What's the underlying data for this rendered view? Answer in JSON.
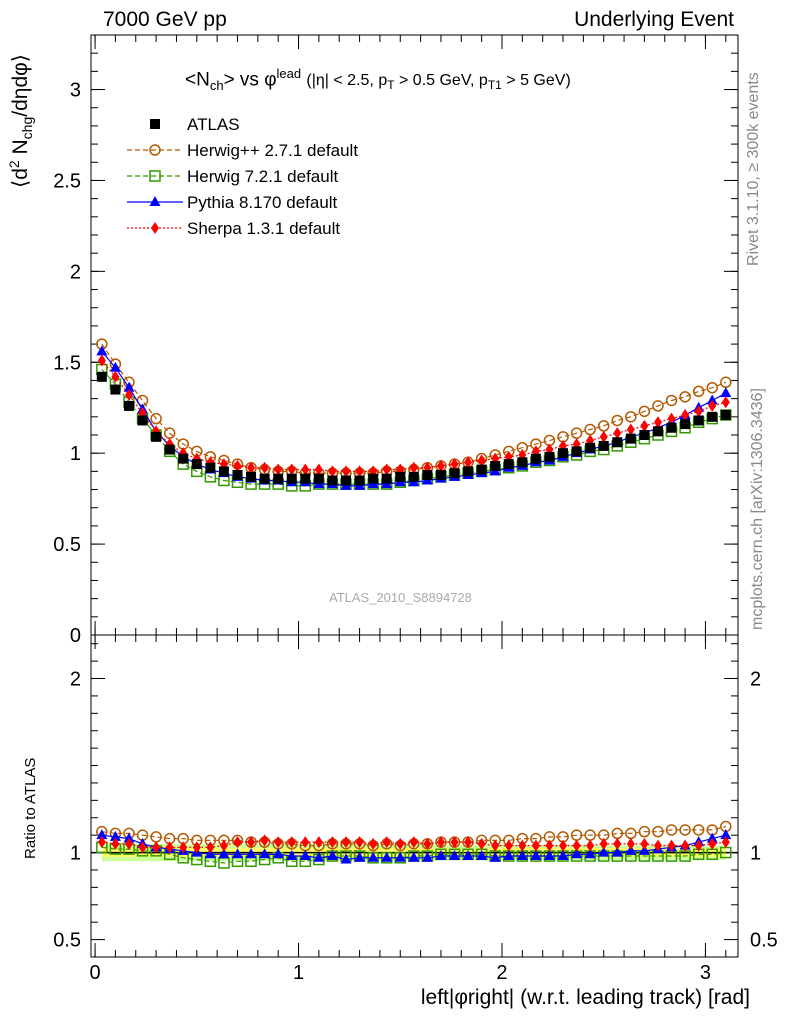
{
  "header": {
    "left_label": "7000 GeV pp",
    "right_label": "Underlying Event"
  },
  "side_labels": {
    "rivet": "Rivet 3.1.10, ≥ 300k events",
    "mcplots": "mcplots.cern.ch [arXiv:1306.3436]"
  },
  "watermark": "ATLAS_2010_S8894728",
  "chart_data": [
    {
      "type": "scatter",
      "panel": "main",
      "title_parts": {
        "n": "<N",
        "n_sub": "ch",
        "vs": "> vs φ",
        "vs_sup": "lead",
        "cuts_a": "(|η| < 2.5, p",
        "cuts_sub1": "T",
        "cuts_b": " > 0.5 GeV, p",
        "cuts_sub2": "T1",
        "cuts_c": " > 5 GeV)"
      },
      "ylabel_parts": {
        "a": "⟨d",
        "sup": "2",
        "b": " N",
        "sub": "chg",
        "c": "/dηdφ⟩"
      },
      "ylim": [
        0,
        3.3
      ],
      "yticks": [
        "0",
        "0.5",
        "1",
        "1.5",
        "2",
        "2.5",
        "3"
      ],
      "xlim": [
        -0.02,
        3.16
      ],
      "x": [
        0.0333,
        0.1,
        0.1667,
        0.2333,
        0.3,
        0.3667,
        0.4333,
        0.5,
        0.5667,
        0.6333,
        0.7,
        0.7667,
        0.8333,
        0.9,
        0.9667,
        1.0333,
        1.1,
        1.1667,
        1.2333,
        1.3,
        1.3667,
        1.4333,
        1.5,
        1.5667,
        1.6333,
        1.7,
        1.7667,
        1.8333,
        1.9,
        1.9667,
        2.0333,
        2.1,
        2.1667,
        2.2333,
        2.3,
        2.3667,
        2.4333,
        2.5,
        2.5667,
        2.6333,
        2.7,
        2.7667,
        2.8333,
        2.9,
        2.9667,
        3.0333,
        3.1
      ],
      "legend": [
        "ATLAS",
        "Herwig++ 2.7.1 default",
        "Herwig 7.2.1 default",
        "Pythia 8.170 default",
        "Sherpa 1.3.1 default"
      ],
      "series": [
        {
          "name": "ATLAS",
          "color": "#000000",
          "marker": "square-filled",
          "values": [
            1.42,
            1.35,
            1.26,
            1.18,
            1.09,
            1.02,
            0.97,
            0.94,
            0.92,
            0.9,
            0.88,
            0.87,
            0.86,
            0.86,
            0.86,
            0.86,
            0.86,
            0.85,
            0.85,
            0.85,
            0.86,
            0.86,
            0.87,
            0.87,
            0.88,
            0.88,
            0.89,
            0.9,
            0.91,
            0.93,
            0.94,
            0.95,
            0.97,
            0.98,
            1.0,
            1.01,
            1.03,
            1.04,
            1.06,
            1.08,
            1.1,
            1.12,
            1.14,
            1.16,
            1.18,
            1.2,
            1.21
          ]
        },
        {
          "name": "Herwig++ 2.7.1 default",
          "color": "#b35900",
          "marker": "circle-open",
          "values": [
            1.6,
            1.49,
            1.39,
            1.29,
            1.19,
            1.11,
            1.05,
            1.01,
            0.98,
            0.96,
            0.94,
            0.92,
            0.91,
            0.9,
            0.9,
            0.89,
            0.89,
            0.89,
            0.89,
            0.89,
            0.89,
            0.9,
            0.9,
            0.91,
            0.92,
            0.93,
            0.94,
            0.95,
            0.97,
            0.99,
            1.01,
            1.03,
            1.05,
            1.07,
            1.09,
            1.11,
            1.13,
            1.15,
            1.18,
            1.2,
            1.23,
            1.26,
            1.29,
            1.31,
            1.34,
            1.36,
            1.39
          ]
        },
        {
          "name": "Herwig 7.2.1 default",
          "color": "#339900",
          "marker": "square-open",
          "values": [
            1.46,
            1.38,
            1.28,
            1.19,
            1.1,
            1.01,
            0.94,
            0.9,
            0.87,
            0.85,
            0.84,
            0.83,
            0.83,
            0.83,
            0.82,
            0.82,
            0.83,
            0.83,
            0.83,
            0.83,
            0.83,
            0.83,
            0.84,
            0.85,
            0.86,
            0.87,
            0.88,
            0.89,
            0.9,
            0.91,
            0.92,
            0.93,
            0.95,
            0.96,
            0.98,
            0.99,
            1.01,
            1.02,
            1.04,
            1.06,
            1.08,
            1.1,
            1.12,
            1.14,
            1.17,
            1.19,
            1.21
          ]
        },
        {
          "name": "Pythia 8.170 default",
          "color": "#0000ff",
          "marker": "triangle",
          "values": [
            1.56,
            1.47,
            1.36,
            1.24,
            1.12,
            1.04,
            0.98,
            0.94,
            0.91,
            0.89,
            0.87,
            0.86,
            0.85,
            0.85,
            0.84,
            0.84,
            0.83,
            0.83,
            0.82,
            0.82,
            0.83,
            0.83,
            0.84,
            0.84,
            0.85,
            0.86,
            0.87,
            0.88,
            0.89,
            0.9,
            0.92,
            0.93,
            0.95,
            0.96,
            0.98,
            1.0,
            1.02,
            1.04,
            1.06,
            1.09,
            1.11,
            1.14,
            1.17,
            1.21,
            1.25,
            1.29,
            1.33
          ]
        },
        {
          "name": "Sherpa 1.3.1 default",
          "color": "#ff0000",
          "marker": "diamond",
          "values": [
            1.51,
            1.42,
            1.32,
            1.22,
            1.12,
            1.05,
            1.0,
            0.97,
            0.95,
            0.94,
            0.93,
            0.92,
            0.92,
            0.91,
            0.91,
            0.91,
            0.91,
            0.9,
            0.9,
            0.9,
            0.9,
            0.91,
            0.91,
            0.92,
            0.92,
            0.93,
            0.94,
            0.95,
            0.96,
            0.97,
            0.98,
            0.99,
            1.01,
            1.02,
            1.04,
            1.05,
            1.07,
            1.09,
            1.11,
            1.13,
            1.15,
            1.17,
            1.19,
            1.21,
            1.23,
            1.26,
            1.28
          ]
        }
      ]
    },
    {
      "type": "scatter",
      "panel": "ratio",
      "ylabel": "Ratio to ATLAS",
      "ylim": [
        0.4,
        2.25
      ],
      "yticks": [
        "0.5",
        "1",
        "2"
      ],
      "xlabel": "left|φright| (w.r.t. leading track) [rad]",
      "xticks": [
        "0",
        "1",
        "2",
        "3"
      ],
      "band_color_inner": "#ffff66",
      "band_color_outer": "#ccff99",
      "series": [
        {
          "name": "Herwig++ 2.7.1 default",
          "color": "#b35900",
          "marker": "circle-open",
          "values": [
            1.12,
            1.11,
            1.11,
            1.1,
            1.09,
            1.08,
            1.08,
            1.07,
            1.07,
            1.07,
            1.07,
            1.06,
            1.06,
            1.05,
            1.05,
            1.04,
            1.04,
            1.05,
            1.05,
            1.05,
            1.04,
            1.05,
            1.04,
            1.05,
            1.05,
            1.06,
            1.06,
            1.06,
            1.07,
            1.07,
            1.07,
            1.08,
            1.08,
            1.09,
            1.09,
            1.1,
            1.1,
            1.1,
            1.11,
            1.11,
            1.12,
            1.12,
            1.13,
            1.13,
            1.13,
            1.13,
            1.15
          ]
        },
        {
          "name": "Herwig 7.2.1 default",
          "color": "#339900",
          "marker": "square-open",
          "values": [
            1.03,
            1.02,
            1.02,
            1.01,
            1.01,
            0.99,
            0.97,
            0.96,
            0.95,
            0.94,
            0.95,
            0.95,
            0.96,
            0.97,
            0.95,
            0.95,
            0.96,
            0.98,
            0.98,
            0.98,
            0.97,
            0.97,
            0.97,
            0.98,
            0.98,
            0.99,
            0.99,
            0.99,
            0.99,
            0.98,
            0.98,
            0.98,
            0.98,
            0.98,
            0.98,
            0.98,
            0.98,
            0.98,
            0.98,
            0.98,
            0.98,
            0.98,
            0.98,
            0.98,
            0.99,
            0.99,
            1.0
          ]
        },
        {
          "name": "Pythia 8.170 default",
          "color": "#0000ff",
          "marker": "triangle",
          "values": [
            1.1,
            1.09,
            1.08,
            1.05,
            1.03,
            1.02,
            1.01,
            1.0,
            0.99,
            0.99,
            0.99,
            0.99,
            0.99,
            0.99,
            0.98,
            0.98,
            0.97,
            0.98,
            0.96,
            0.97,
            0.97,
            0.97,
            0.97,
            0.97,
            0.97,
            0.98,
            0.98,
            0.98,
            0.98,
            0.97,
            0.98,
            0.98,
            0.98,
            0.98,
            0.98,
            0.99,
            0.99,
            1.0,
            1.0,
            1.01,
            1.01,
            1.02,
            1.03,
            1.04,
            1.06,
            1.08,
            1.1
          ]
        },
        {
          "name": "Sherpa 1.3.1 default",
          "color": "#ff0000",
          "marker": "diamond",
          "values": [
            1.06,
            1.05,
            1.05,
            1.03,
            1.03,
            1.03,
            1.03,
            1.03,
            1.03,
            1.04,
            1.06,
            1.06,
            1.07,
            1.06,
            1.06,
            1.06,
            1.06,
            1.06,
            1.06,
            1.06,
            1.05,
            1.06,
            1.05,
            1.06,
            1.05,
            1.06,
            1.06,
            1.06,
            1.05,
            1.04,
            1.04,
            1.04,
            1.04,
            1.04,
            1.04,
            1.04,
            1.04,
            1.05,
            1.05,
            1.05,
            1.05,
            1.04,
            1.04,
            1.04,
            1.04,
            1.05,
            1.06
          ]
        }
      ]
    }
  ]
}
